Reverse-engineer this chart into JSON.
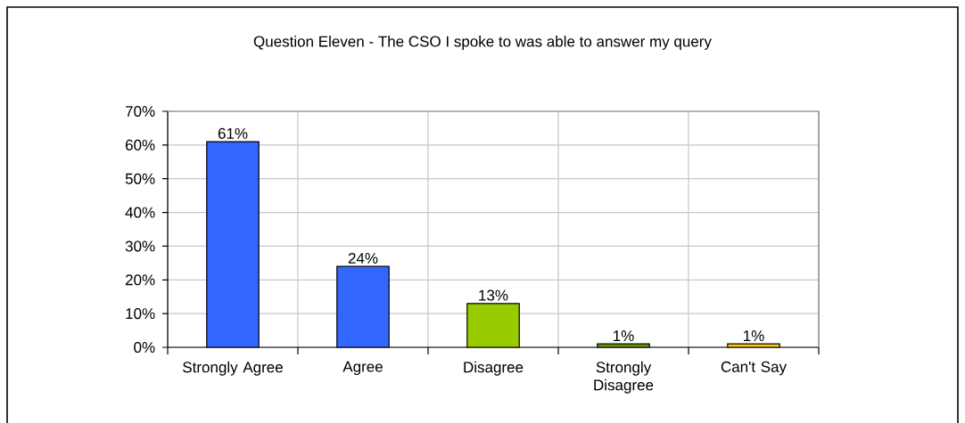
{
  "chart_data": {
    "type": "bar",
    "title": "Question Eleven - The CSO I spoke to was able to answer my query",
    "categories": [
      "Strongly Agree",
      "Agree",
      "Disagree",
      "Strongly Disagree",
      "Can't Say"
    ],
    "values": [
      61,
      24,
      13,
      1,
      1
    ],
    "colors": [
      "#3366ff",
      "#3366ff",
      "#99cc00",
      "#669900",
      "#ffcc00"
    ],
    "value_labels": [
      "61%",
      "24%",
      "13%",
      "1%",
      "1%"
    ],
    "ylim": [
      0,
      70
    ],
    "yticks": [
      {
        "value": 0,
        "label": "0%"
      },
      {
        "value": 10,
        "label": "10%"
      },
      {
        "value": 20,
        "label": "20%"
      },
      {
        "value": 30,
        "label": "30%"
      },
      {
        "value": 40,
        "label": "40%"
      },
      {
        "value": 50,
        "label": "50%"
      },
      {
        "value": 60,
        "label": "60%"
      },
      {
        "value": 70,
        "label": "70%"
      }
    ],
    "grid": true
  }
}
